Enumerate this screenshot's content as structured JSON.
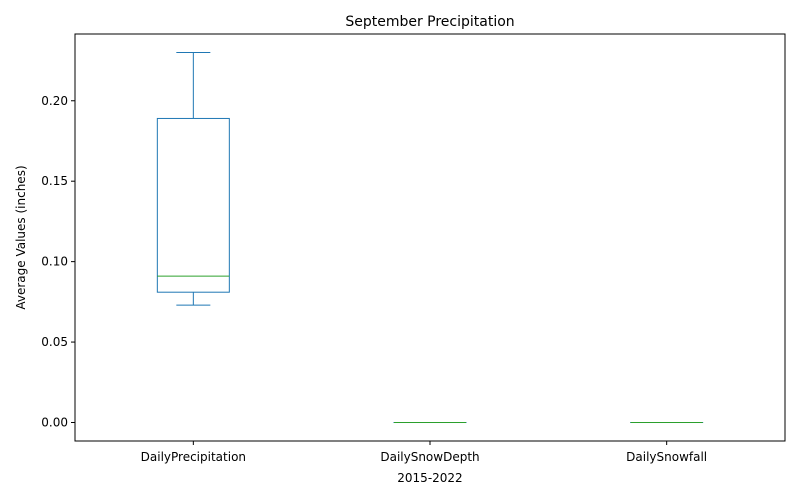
{
  "chart_data": {
    "type": "box",
    "title": "September Precipitation",
    "xlabel": "2015-2022",
    "ylabel": "Average Values (inches)",
    "ylim": [
      -0.0115,
      0.2415
    ],
    "yticks": [
      0.0,
      0.05,
      0.1,
      0.15,
      0.2
    ],
    "ytick_labels": [
      "0.00",
      "0.05",
      "0.10",
      "0.15",
      "0.20"
    ],
    "grid": false,
    "categories": [
      "DailyPrecipitation",
      "DailySnowDepth",
      "DailySnowfall"
    ],
    "boxes": [
      {
        "category": "DailyPrecipitation",
        "whisker_low": 0.073,
        "q1": 0.081,
        "median": 0.091,
        "q3": 0.189,
        "whisker_high": 0.23
      },
      {
        "category": "DailySnowDepth",
        "whisker_low": 0.0,
        "q1": 0.0,
        "median": 0.0,
        "q3": 0.0,
        "whisker_high": 0.0
      },
      {
        "category": "DailySnowfall",
        "whisker_low": 0.0,
        "q1": 0.0,
        "median": 0.0,
        "q3": 0.0,
        "whisker_high": 0.0
      }
    ],
    "colors": {
      "box": "#1f77b4",
      "median": "#2ca02c",
      "axes": "#000000"
    }
  }
}
